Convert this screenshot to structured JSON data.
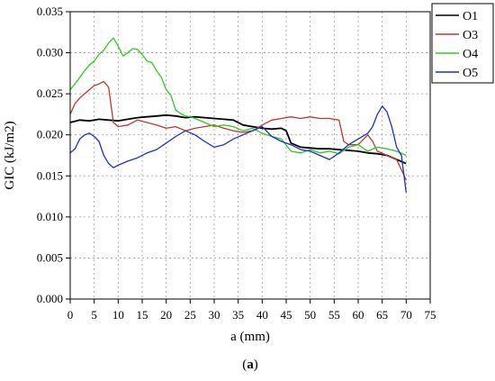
{
  "chart_data": {
    "type": "line",
    "xlabel": "a (mm)",
    "ylabel": "GIC (kJ/m2)",
    "xlim": [
      0,
      75
    ],
    "ylim": [
      0,
      0.035
    ],
    "xticks": [
      0,
      5,
      10,
      15,
      20,
      25,
      30,
      35,
      40,
      45,
      50,
      55,
      60,
      65,
      70,
      75
    ],
    "yticks": [
      0.0,
      0.005,
      0.01,
      0.015,
      0.02,
      0.025,
      0.03,
      0.035
    ],
    "ytick_labels": [
      "0.000",
      "0.005",
      "0.010",
      "0.015",
      "0.020",
      "0.025",
      "0.030",
      "0.035"
    ],
    "grid": true,
    "legend_position": "top-right",
    "caption_prefix": "(",
    "caption_letter": "a",
    "caption_suffix": ")",
    "series": [
      {
        "name": "O1",
        "color": "#000000",
        "x": [
          0,
          2,
          4,
          6,
          8,
          10,
          12,
          14,
          16,
          18,
          20,
          22,
          24,
          26,
          28,
          30,
          32,
          34,
          36,
          38,
          40,
          42,
          44,
          45,
          46,
          48,
          50,
          52,
          54,
          56,
          58,
          60,
          62,
          64,
          66,
          68,
          70
        ],
        "y": [
          0.0215,
          0.0218,
          0.0217,
          0.0219,
          0.0218,
          0.0217,
          0.0219,
          0.0221,
          0.0222,
          0.0223,
          0.0224,
          0.0223,
          0.0221,
          0.0222,
          0.0221,
          0.022,
          0.0219,
          0.0218,
          0.0212,
          0.021,
          0.0208,
          0.0207,
          0.0208,
          0.0205,
          0.019,
          0.0185,
          0.0184,
          0.0183,
          0.0183,
          0.0182,
          0.0181,
          0.018,
          0.0178,
          0.0177,
          0.0175,
          0.017,
          0.0165
        ]
      },
      {
        "name": "O3",
        "color": "#c0392b",
        "x": [
          0,
          1,
          2,
          3,
          4,
          5,
          6,
          7,
          8,
          9,
          10,
          12,
          14,
          16,
          18,
          20,
          22,
          24,
          26,
          28,
          30,
          32,
          34,
          36,
          38,
          40,
          42,
          44,
          46,
          48,
          50,
          52,
          54,
          56,
          57,
          58,
          60,
          62,
          63,
          64,
          66,
          68,
          70
        ],
        "y": [
          0.0225,
          0.0238,
          0.0245,
          0.025,
          0.0255,
          0.026,
          0.0262,
          0.0265,
          0.0258,
          0.0215,
          0.021,
          0.0212,
          0.0218,
          0.0215,
          0.0212,
          0.0208,
          0.021,
          0.0205,
          0.0208,
          0.021,
          0.0212,
          0.0208,
          0.0205,
          0.0203,
          0.0205,
          0.0212,
          0.0218,
          0.022,
          0.0222,
          0.022,
          0.0222,
          0.022,
          0.022,
          0.0218,
          0.0192,
          0.0188,
          0.0188,
          0.02,
          0.0192,
          0.018,
          0.0175,
          0.017,
          0.0145
        ]
      },
      {
        "name": "O4",
        "color": "#2ecc20",
        "x": [
          0,
          1,
          2,
          3,
          4,
          5,
          6,
          7,
          8,
          9,
          10,
          11,
          12,
          13,
          14,
          15,
          16,
          17,
          18,
          19,
          20,
          21,
          22,
          23,
          24,
          25,
          26,
          28,
          30,
          32,
          34,
          36,
          38,
          40,
          42,
          44,
          46,
          48,
          50,
          52,
          54,
          56,
          58,
          60,
          62,
          64,
          66,
          68,
          70
        ],
        "y": [
          0.0255,
          0.0262,
          0.027,
          0.0278,
          0.0285,
          0.029,
          0.0298,
          0.0303,
          0.0312,
          0.0318,
          0.0308,
          0.0296,
          0.03,
          0.0305,
          0.0304,
          0.0298,
          0.029,
          0.0288,
          0.0278,
          0.027,
          0.0255,
          0.0248,
          0.023,
          0.0226,
          0.0223,
          0.0222,
          0.022,
          0.0215,
          0.021,
          0.0212,
          0.021,
          0.0205,
          0.0208,
          0.0202,
          0.0198,
          0.0195,
          0.018,
          0.0178,
          0.0182,
          0.0178,
          0.018,
          0.0177,
          0.0185,
          0.0188,
          0.018,
          0.0185,
          0.0183,
          0.018,
          0.0175
        ]
      },
      {
        "name": "O5",
        "color": "#1f2ed1",
        "x": [
          0,
          1,
          2,
          3,
          4,
          5,
          6,
          7,
          8,
          9,
          10,
          12,
          14,
          16,
          18,
          20,
          22,
          24,
          26,
          28,
          30,
          32,
          34,
          36,
          38,
          40,
          42,
          44,
          46,
          48,
          50,
          52,
          54,
          56,
          58,
          60,
          62,
          63,
          64,
          65,
          66,
          67,
          68,
          69,
          70
        ],
        "y": [
          0.0178,
          0.0183,
          0.0195,
          0.02,
          0.0202,
          0.0198,
          0.0192,
          0.0175,
          0.0165,
          0.016,
          0.0163,
          0.0168,
          0.0172,
          0.0178,
          0.0182,
          0.019,
          0.0198,
          0.0205,
          0.02,
          0.0192,
          0.0185,
          0.0188,
          0.0195,
          0.02,
          0.0205,
          0.021,
          0.0198,
          0.0192,
          0.0188,
          0.0182,
          0.018,
          0.0175,
          0.017,
          0.0178,
          0.0188,
          0.0195,
          0.0202,
          0.021,
          0.0225,
          0.0235,
          0.0228,
          0.021,
          0.0185,
          0.0175,
          0.013
        ]
      }
    ]
  }
}
